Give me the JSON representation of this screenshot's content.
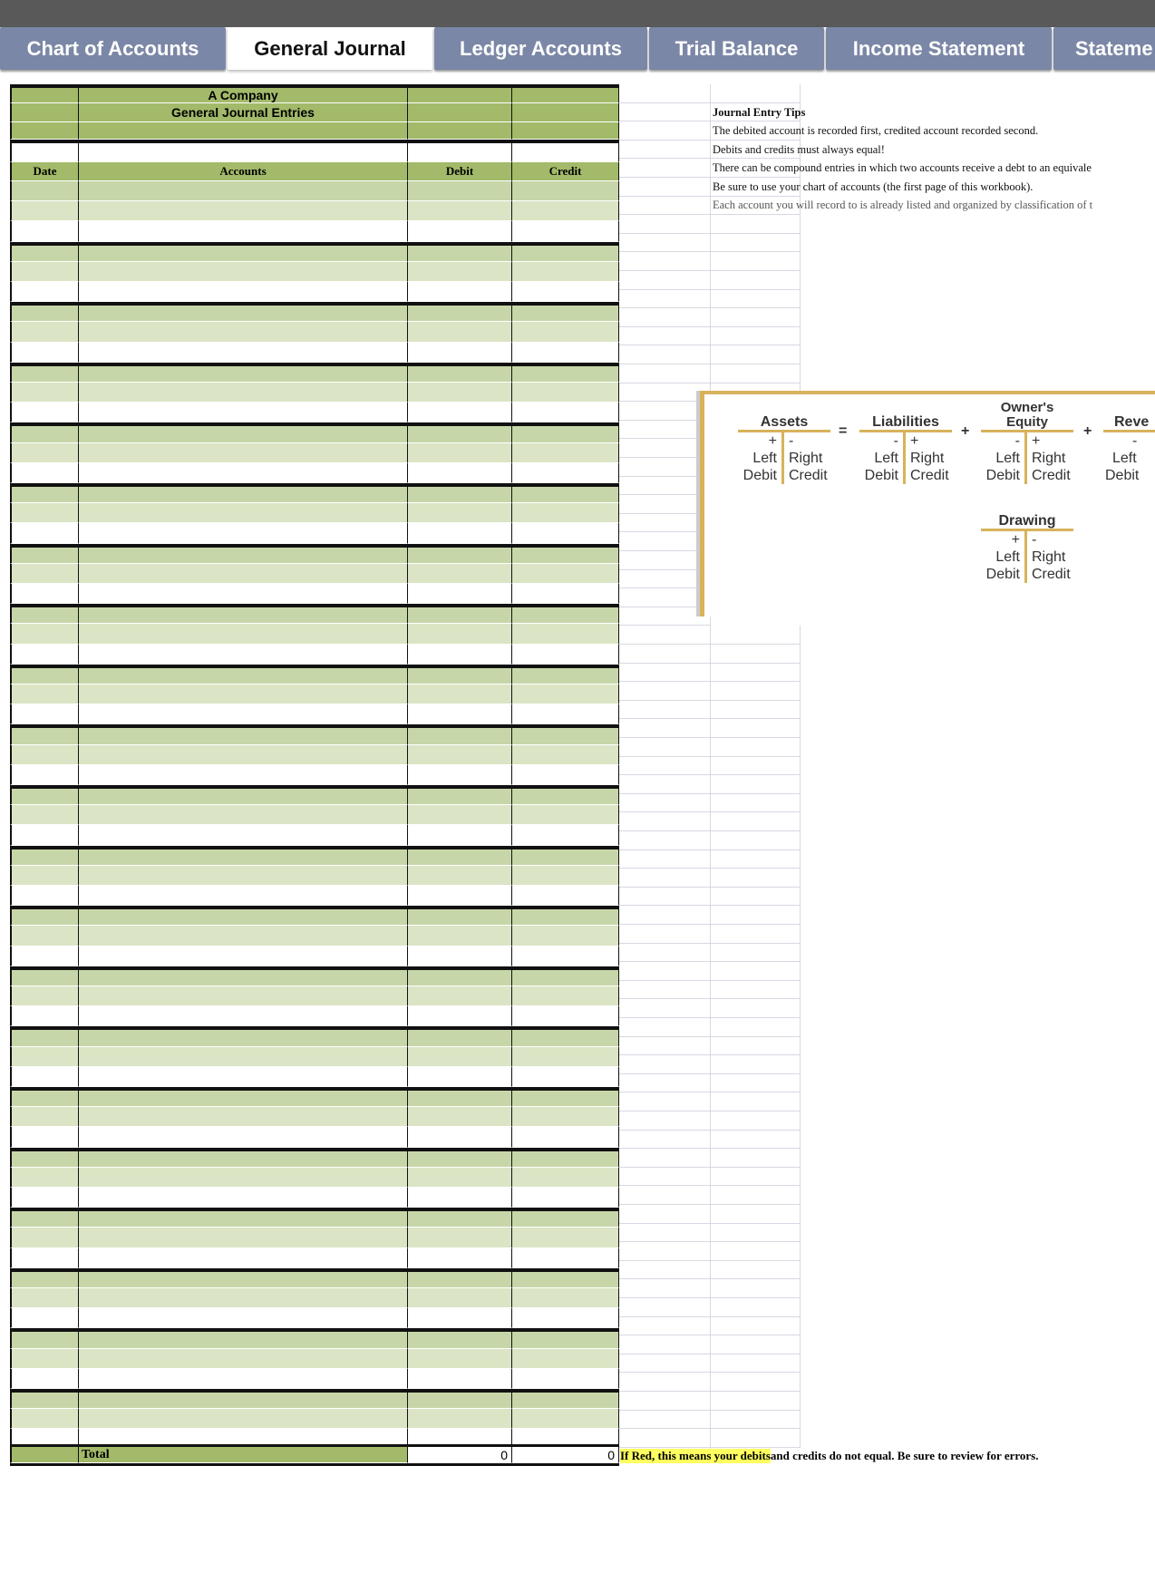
{
  "tabs": [
    {
      "label": "Chart of Accounts"
    },
    {
      "label": "General Journal",
      "active": true
    },
    {
      "label": "Ledger Accounts"
    },
    {
      "label": "Trial Balance"
    },
    {
      "label": "Income Statement"
    },
    {
      "label": "Stateme"
    }
  ],
  "journal": {
    "company": "A Company",
    "title": "General Journal Entries",
    "headers": {
      "date": "Date",
      "accounts": "Accounts",
      "debit": "Debit",
      "credit": "Credit"
    },
    "total_label": "Total",
    "total_debit": "0",
    "total_credit": "0",
    "warning_highlight": "If Red, this means your debits",
    "warning_rest": " and credits do not equal. Be sure to review for errors."
  },
  "tips": {
    "title": "Journal Entry Tips",
    "lines": [
      "The debited account is recorded first, credited account recorded second.",
      "Debits and credits must always equal!",
      "There can be compound entries in which two accounts receive a debt to an equivale",
      "Be sure to use your chart of accounts (the first page of this workbook).",
      "Each account you will record to is already listed and organized by classification of t"
    ]
  },
  "diagram": {
    "assets": "Assets",
    "eq": "=",
    "liabilities": "Liabilities",
    "plus": "+",
    "equity": "Owner's Equity",
    "revenue": "Reve",
    "drawing": "Drawing",
    "left": "Left",
    "right": "Right",
    "debit": "Debit",
    "credit": "Credit",
    "pos": "+",
    "neg": "-"
  },
  "colors": {
    "header_green": "#a2ba69",
    "dark_row": "#c7d6a8",
    "light_row": "#dbe5c5",
    "tab_bg": "#7b87a6",
    "highlight": "#ffff60",
    "gold": "#d8b35c"
  }
}
